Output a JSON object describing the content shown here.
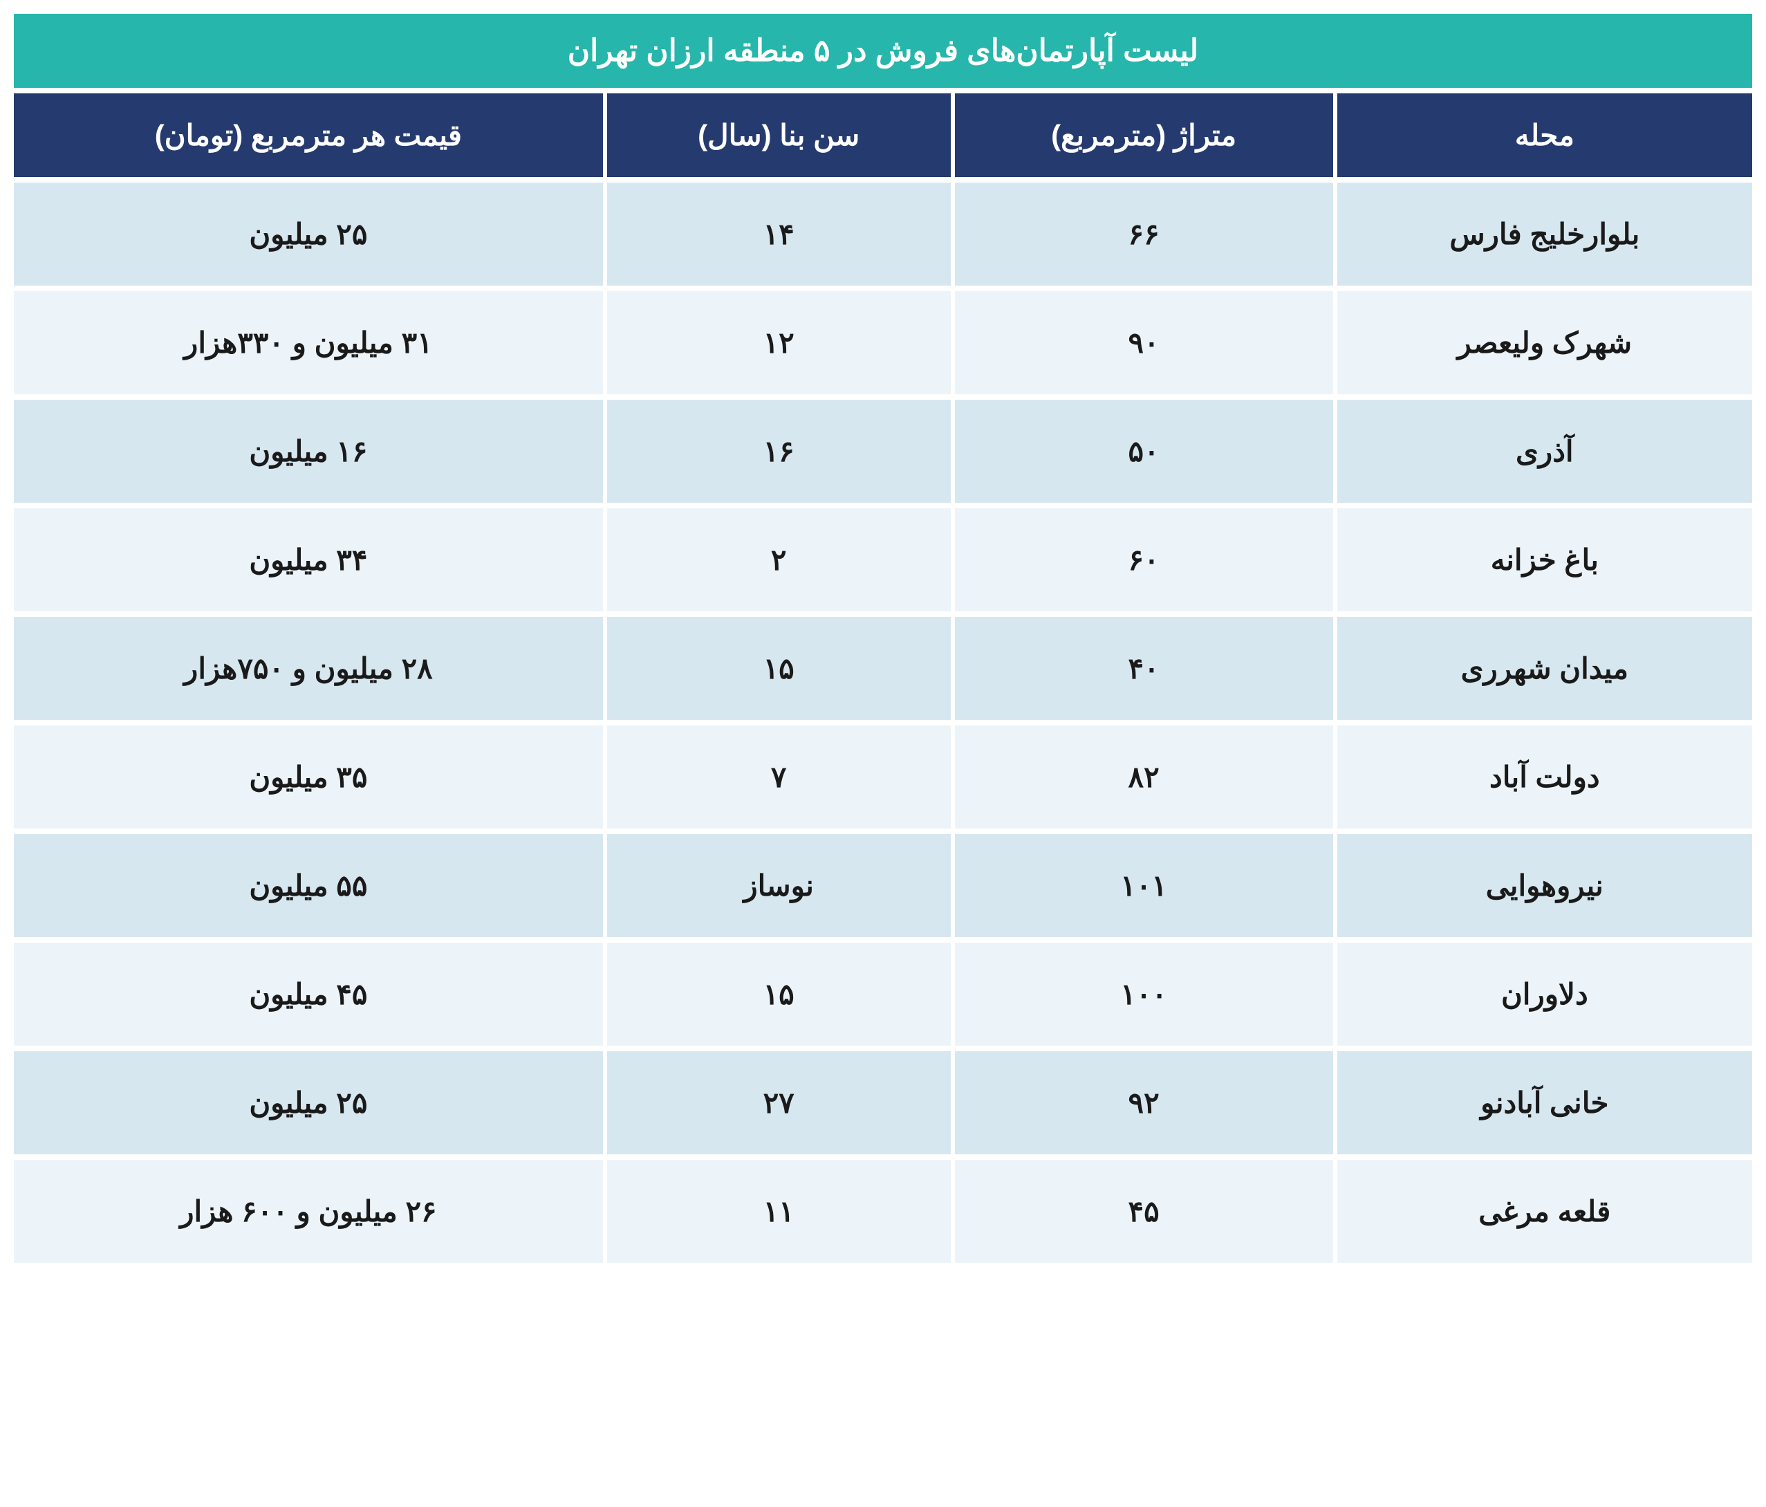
{
  "title": "لیست آپارتمان‌های فروش در ۵ منطقه ارزان تهران",
  "columns": {
    "neighborhood": "محله",
    "area": "متراژ (مترمربع)",
    "age": "سن بنا (سال)",
    "price": "قیمت هر مترمربع (تومان)"
  },
  "rows": [
    {
      "neighborhood": "بلوارخلیج فارس",
      "area": "۶۶",
      "age": "۱۴",
      "price": "۲۵ میلیون"
    },
    {
      "neighborhood": "شهرک ولیعصر",
      "area": "۹۰",
      "age": "۱۲",
      "price": "۳۱ میلیون و ۳۳۰هزار"
    },
    {
      "neighborhood": "آذری",
      "area": "۵۰",
      "age": "۱۶",
      "price": "۱۶ میلیون"
    },
    {
      "neighborhood": "باغ خزانه",
      "area": "۶۰",
      "age": "۲",
      "price": "۳۴ میلیون"
    },
    {
      "neighborhood": "میدان شهرری",
      "area": "۴۰",
      "age": "۱۵",
      "price": "۲۸ میلیون و ۷۵۰هزار"
    },
    {
      "neighborhood": "دولت آباد",
      "area": "۸۲",
      "age": "۷",
      "price": "۳۵ میلیون"
    },
    {
      "neighborhood": "نیروهوایی",
      "area": "۱۰۱",
      "age": "نوساز",
      "price": "۵۵ میلیون"
    },
    {
      "neighborhood": "دلاوران",
      "area": "۱۰۰",
      "age": "۱۵",
      "price": "۴۵ میلیون"
    },
    {
      "neighborhood": "خانی آبادنو",
      "area": "۹۲",
      "age": "۲۷",
      "price": "۲۵ میلیون"
    },
    {
      "neighborhood": "قلعه مرغی",
      "area": "۴۵",
      "age": "۱۱",
      "price": "۲۶ میلیون و ۶۰۰ هزار"
    }
  ],
  "styles": {
    "title_bg": "#26b6ab",
    "header_bg": "#253a6f",
    "row_odd_bg": "#d7e7f0",
    "row_even_bg": "#edf4f9",
    "text_color": "#1a1a1a",
    "header_text_color": "#ffffff",
    "title_fontsize": 44,
    "header_fontsize": 42,
    "cell_fontsize": 42,
    "border_color": "#ffffff"
  }
}
